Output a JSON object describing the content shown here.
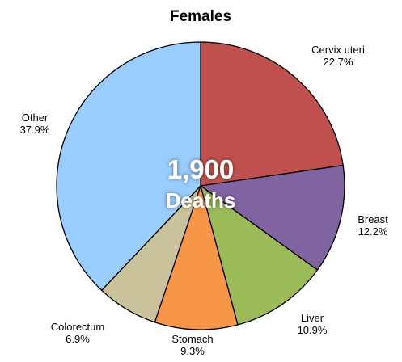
{
  "chart_data": {
    "type": "pie",
    "title": "Females",
    "center_value": "1,900",
    "center_label": "Deaths",
    "slices": [
      {
        "label": "Cervix uteri",
        "value_label": "22.7%",
        "value": 22.7,
        "color": "#c0504d"
      },
      {
        "label": "Breast",
        "value_label": "12.2%",
        "value": 12.2,
        "color": "#8064a2"
      },
      {
        "label": "Liver",
        "value_label": "10.9%",
        "value": 10.9,
        "color": "#9bbb59"
      },
      {
        "label": "Stomach",
        "value_label": "9.3%",
        "value": 9.3,
        "color": "#f79646"
      },
      {
        "label": "Colorectum",
        "value_label": "6.9%",
        "value": 6.9,
        "color": "#c9c29a"
      },
      {
        "label": "Other",
        "value_label": "37.9%",
        "value": 37.9,
        "color": "#99ccff"
      }
    ]
  }
}
